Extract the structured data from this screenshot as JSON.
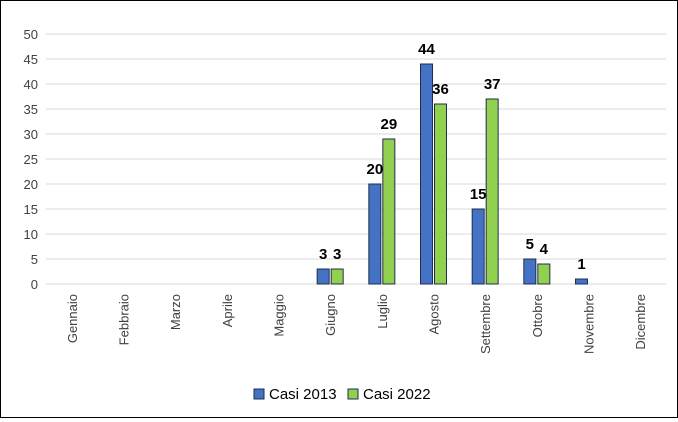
{
  "chart_data": {
    "type": "bar",
    "categories": [
      "Gennaio",
      "Febbraio",
      "Marzo",
      "Aprile",
      "Maggio",
      "Giugno",
      "Luglio",
      "Agosto",
      "Settembre",
      "Ottobre",
      "Novembre",
      "Dicembre"
    ],
    "series": [
      {
        "name": "Casi 2013",
        "color": "#4472C4",
        "values": [
          0,
          0,
          0,
          0,
          0,
          3,
          20,
          44,
          15,
          5,
          1,
          0
        ],
        "labels": [
          "",
          "",
          "",
          "",
          "",
          "3",
          "20",
          "44",
          "15",
          "5",
          "1",
          ""
        ]
      },
      {
        "name": "Casi 2022",
        "color": "#92D050",
        "values": [
          0,
          0,
          0,
          0,
          0,
          3,
          29,
          36,
          37,
          4,
          0,
          0
        ],
        "labels": [
          "",
          "",
          "",
          "",
          "",
          "3",
          "29",
          "36",
          "37",
          "4",
          "",
          ""
        ]
      }
    ],
    "ylim": [
      0,
      50
    ],
    "yticks": [
      "0",
      "5",
      "10",
      "15",
      "20",
      "25",
      "30",
      "35",
      "40",
      "45",
      "50"
    ],
    "grid": true,
    "legend": "bottom",
    "title": "",
    "xlabel": "",
    "ylabel": ""
  }
}
